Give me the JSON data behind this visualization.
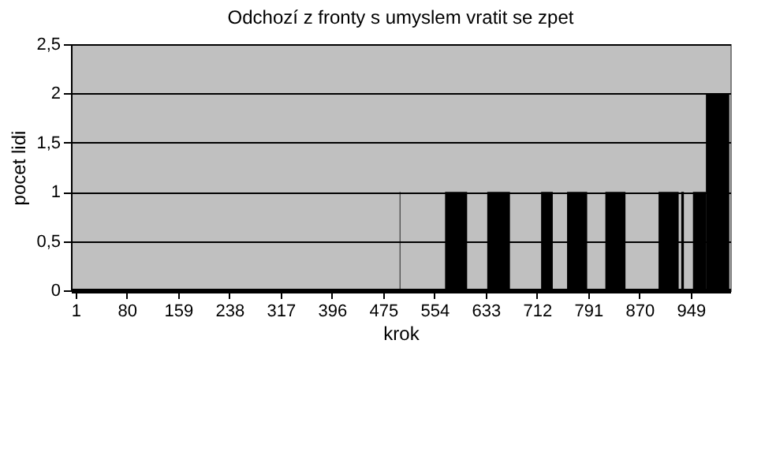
{
  "chart_data": {
    "type": "histogram",
    "title": "Odchozí z fronty s umyslem vratit se zpet",
    "xlabel": "krok",
    "ylabel": "pocet lidi",
    "bins": [
      500.5,
      501.5,
      570.5,
      604.5,
      635.5,
      670.5,
      718.5,
      736.5,
      758.5,
      789.5,
      817.5,
      848.5,
      899.5,
      930.5,
      934.5,
      938.5,
      952.5,
      972.5,
      1008.5
    ],
    "values": [
      1,
      0,
      1,
      0,
      1,
      0,
      1,
      0,
      1,
      0,
      1,
      0,
      1,
      0,
      1,
      0,
      1,
      2
    ],
    "color": "#000000",
    "xlim": [
      -6,
      1010
    ],
    "xticks": [
      1,
      80,
      159,
      238,
      317,
      396,
      475,
      554,
      633,
      712,
      791,
      870,
      949
    ],
    "ylim": [
      0,
      2.5
    ],
    "yticks": [
      0,
      {
        "value": 0.5,
        "label": "0,5"
      },
      1,
      {
        "value": 1.5,
        "label": "1,5"
      },
      2,
      {
        "value": 2.5,
        "label": "2,5"
      }
    ],
    "grid": "y"
  }
}
